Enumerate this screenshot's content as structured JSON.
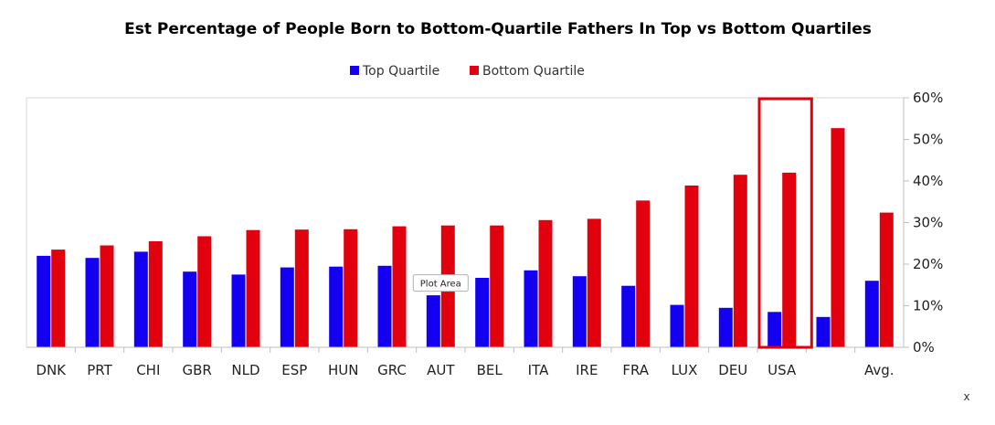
{
  "chart_data": {
    "type": "bar",
    "title": "Est Percentage of People Born to Bottom-Quartile Fathers In Top vs Bottom Quartiles",
    "xlabel": "",
    "ylabel": "",
    "ylim": [
      0,
      60
    ],
    "yticks": [
      "0%",
      "10%",
      "20%",
      "30%",
      "40%",
      "50%",
      "60%"
    ],
    "ytick_values": [
      0,
      10,
      20,
      30,
      40,
      50,
      60
    ],
    "y_axis_position": "right",
    "grid": false,
    "legend_position": "top-center",
    "categories": [
      "DNK",
      "PRT",
      "CHI",
      "GBR",
      "NLD",
      "ESP",
      "HUN",
      "GRC",
      "AUT",
      "BEL",
      "ITA",
      "IRE",
      "FRA",
      "LUX",
      "DEU",
      "USA",
      "",
      "Avg."
    ],
    "series": [
      {
        "name": "Top Quartile",
        "color": "#1400f0",
        "values": [
          22,
          21.5,
          23,
          18.2,
          17.5,
          19.2,
          19.4,
          19.6,
          12.5,
          16.7,
          18.5,
          17.1,
          14.8,
          10.2,
          9.5,
          8.5,
          7.3,
          16
        ]
      },
      {
        "name": "Bottom Quartile",
        "color": "#e0000e",
        "values": [
          23.5,
          24.5,
          25.5,
          26.7,
          28.2,
          28.3,
          28.4,
          29.1,
          29.3,
          29.3,
          30.6,
          30.9,
          35.3,
          38.9,
          41.5,
          42,
          52.7,
          32.4
        ]
      }
    ],
    "highlight_category": "USA",
    "highlight_color": "#e0000e",
    "annotations": [
      {
        "text": "Plot Area",
        "category": "AUT",
        "y": 13.5
      }
    ]
  },
  "page": {
    "corner_mark": "x"
  }
}
